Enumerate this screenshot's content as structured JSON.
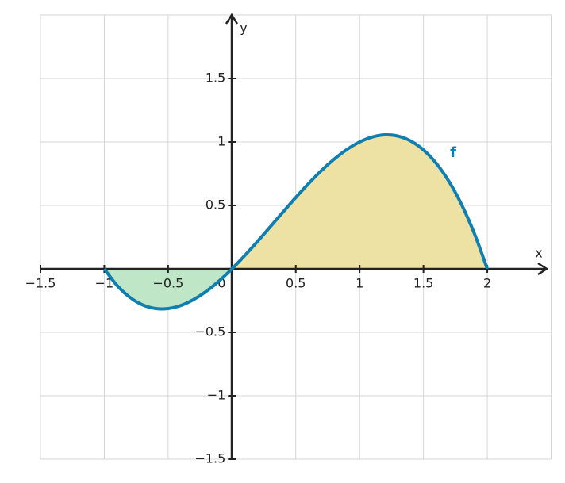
{
  "chart_data": {
    "type": "line",
    "x_label": "x",
    "y_label": "y",
    "x": [
      -1,
      -0.9,
      -0.8,
      -0.7,
      -0.6,
      -0.5,
      -0.4,
      -0.3,
      -0.2,
      -0.1,
      0,
      0.1,
      0.2,
      0.3,
      0.4,
      0.5,
      0.6,
      0.7,
      0.8,
      0.9,
      1,
      1.1,
      1.2,
      1.3,
      1.4,
      1.5,
      1.6,
      1.7,
      1.8,
      1.9,
      2
    ],
    "series": [
      {
        "name": "f",
        "color": "#0e7fb0",
        "values": [
          0,
          -0.1305,
          -0.224,
          -0.2835,
          -0.312,
          -0.3125,
          -0.288,
          -0.2415,
          -0.176,
          -0.0945,
          0,
          0.1045,
          0.216,
          0.3315,
          0.448,
          0.5625,
          0.672,
          0.7735,
          0.864,
          0.9405,
          1,
          1.0395,
          1.056,
          1.0465,
          1.008,
          0.9375,
          0.832,
          0.6885,
          0.504,
          0.2755,
          0
        ]
      }
    ],
    "fills": [
      {
        "from": -1,
        "to": 0,
        "color": "#bfe6c6"
      },
      {
        "from": 0,
        "to": 2,
        "color": "#ede1a4"
      }
    ],
    "xlim": [
      -1.5,
      2.5
    ],
    "ylim": [
      -1.5,
      2
    ],
    "xticks": [
      {
        "value": -1.5,
        "label": "−1.5"
      },
      {
        "value": -1,
        "label": "−1"
      },
      {
        "value": -0.5,
        "label": "−0.5"
      },
      0,
      0.5,
      1,
      1.5,
      2
    ],
    "yticks": [
      {
        "value": -1.5,
        "label": "−1.5"
      },
      {
        "value": -1,
        "label": "−1"
      },
      {
        "value": -0.5,
        "label": "−0.5"
      },
      0.5,
      1,
      1.5
    ],
    "grid": true
  }
}
